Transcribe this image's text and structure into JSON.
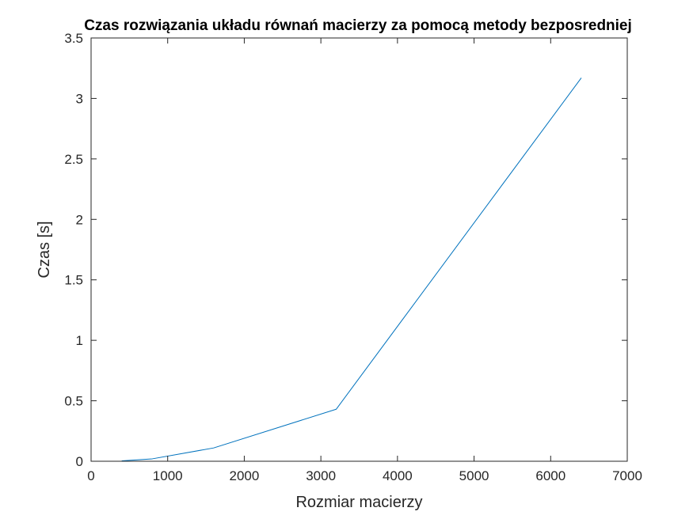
{
  "chart_data": {
    "type": "line",
    "title": "Czas rozwiązania układu równań macierzy za pomocą metody bezposredniej",
    "xlabel": "Rozmiar macierzy",
    "ylabel": "Czas [s]",
    "xlim": [
      0,
      7000
    ],
    "ylim": [
      0,
      3.5
    ],
    "xticks": [
      0,
      1000,
      2000,
      3000,
      4000,
      5000,
      6000,
      7000
    ],
    "xtick_labels": [
      "0",
      "1000",
      "2000",
      "3000",
      "4000",
      "5000",
      "6000",
      "7000"
    ],
    "yticks": [
      0,
      0.5,
      1,
      1.5,
      2,
      2.5,
      3,
      3.5
    ],
    "ytick_labels": [
      "0",
      "0.5",
      "1",
      "1.5",
      "2",
      "2.5",
      "3",
      "3.5"
    ],
    "grid": false,
    "box": true,
    "series": [
      {
        "x": [
          400,
          800,
          1600,
          3200,
          6400
        ],
        "y": [
          0.003,
          0.02,
          0.11,
          0.43,
          3.17
        ],
        "color": "#0072BD"
      }
    ]
  }
}
